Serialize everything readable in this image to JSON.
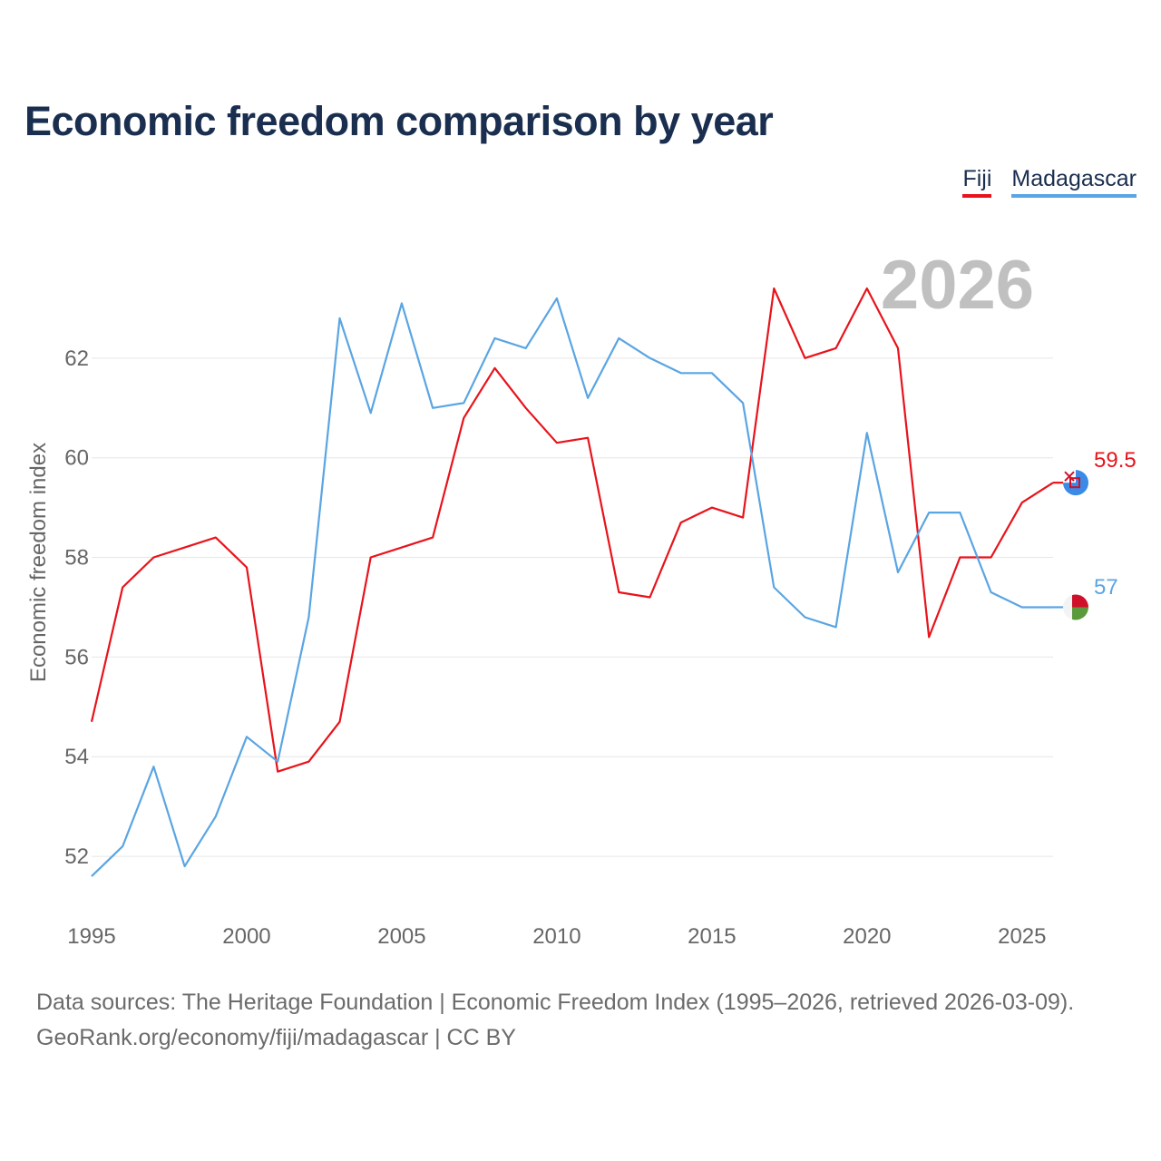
{
  "title": "Economic freedom comparison by year",
  "legend": [
    {
      "name": "Fiji",
      "color": "#e8131b"
    },
    {
      "name": "Madagascar",
      "color": "#5aa5e3"
    }
  ],
  "year_watermark": "2026",
  "sources": {
    "line1": "Data sources: The Heritage Foundation | Economic Freedom Index (1995–2026, retrieved 2026-03-09).",
    "line2": "GeoRank.org/economy/fiji/madagascar | CC BY"
  },
  "colors": {
    "title": "#1a2e4f",
    "axis_text": "#666666",
    "grid": "#e6e6e6",
    "watermark": "#c0c0c0"
  },
  "chart_data": {
    "type": "line",
    "title": "Economic freedom comparison by year",
    "xlabel": "",
    "ylabel": "Economic freedom index",
    "xlim": [
      1995,
      2026
    ],
    "ylim": [
      50.8,
      64
    ],
    "xticks": [
      1995,
      2000,
      2005,
      2010,
      2015,
      2020,
      2025
    ],
    "yticks": [
      52,
      54,
      56,
      58,
      60,
      62
    ],
    "x": [
      1995,
      1996,
      1997,
      1998,
      1999,
      2000,
      2001,
      2002,
      2003,
      2004,
      2005,
      2006,
      2007,
      2008,
      2009,
      2010,
      2011,
      2012,
      2013,
      2014,
      2015,
      2016,
      2017,
      2018,
      2019,
      2020,
      2021,
      2022,
      2023,
      2024,
      2025,
      2026
    ],
    "series": [
      {
        "name": "Fiji",
        "color": "#e8131b",
        "end_label": "59.5",
        "flag_icon": "fiji-flag-icon",
        "values": [
          54.7,
          57.4,
          58.0,
          58.2,
          58.4,
          57.8,
          53.7,
          53.9,
          54.7,
          58.0,
          58.2,
          58.4,
          60.8,
          61.8,
          61.0,
          60.3,
          60.4,
          57.3,
          57.2,
          58.7,
          59.0,
          58.8,
          63.4,
          62.0,
          62.2,
          63.4,
          62.2,
          56.4,
          58.0,
          58.0,
          59.1,
          59.5
        ]
      },
      {
        "name": "Madagascar",
        "color": "#5aa5e3",
        "end_label": "57",
        "flag_icon": "madagascar-flag-icon",
        "values": [
          51.6,
          52.2,
          53.8,
          51.8,
          52.8,
          54.4,
          53.9,
          56.8,
          62.8,
          60.9,
          63.1,
          61.0,
          61.1,
          62.4,
          62.2,
          63.2,
          61.2,
          62.4,
          62.0,
          61.7,
          61.7,
          61.1,
          57.4,
          56.8,
          56.6,
          60.5,
          57.7,
          58.9,
          58.9,
          57.3,
          57.0,
          57.0
        ]
      }
    ]
  }
}
